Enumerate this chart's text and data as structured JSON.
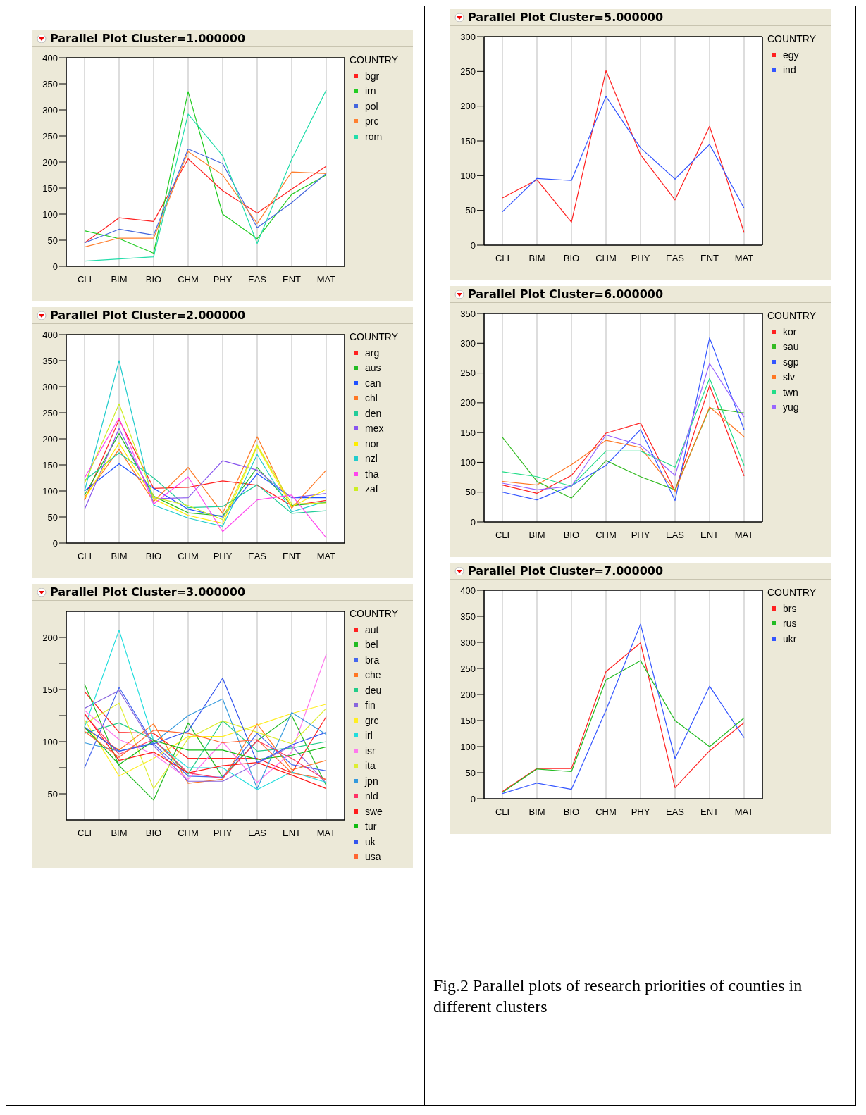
{
  "chart_data": [
    {
      "type": "line",
      "title": "Parallel Plot Cluster=1.000000",
      "legend_title": "COUNTRY",
      "legend": "right",
      "grid": "x",
      "marker": "none",
      "line_style": "solid",
      "categories": [
        "CLI",
        "BIM",
        "BIO",
        "CHM",
        "PHY",
        "EAS",
        "ENT",
        "MAT"
      ],
      "ylim": [
        0,
        400
      ],
      "yticks": [
        0,
        50,
        100,
        150,
        200,
        250,
        300,
        350,
        400
      ],
      "series": [
        {
          "name": "bgr",
          "color": "#ff2020",
          "values": [
            45,
            93,
            86,
            206,
            145,
            102,
            148,
            192
          ]
        },
        {
          "name": "irn",
          "color": "#22cc22",
          "values": [
            68,
            53,
            25,
            335,
            100,
            53,
            138,
            175
          ]
        },
        {
          "name": "pol",
          "color": "#4466dd",
          "values": [
            45,
            71,
            60,
            225,
            197,
            74,
            122,
            178
          ]
        },
        {
          "name": "prc",
          "color": "#ff8030",
          "values": [
            37,
            54,
            54,
            220,
            175,
            82,
            181,
            178
          ]
        },
        {
          "name": "rom",
          "color": "#22ddaa",
          "values": [
            10,
            14,
            18,
            292,
            212,
            44,
            205,
            338
          ]
        }
      ]
    },
    {
      "type": "line",
      "title": "Parallel Plot Cluster=2.000000",
      "legend_title": "COUNTRY",
      "legend": "right",
      "grid": "x",
      "marker": "none",
      "line_style": "solid",
      "categories": [
        "CLI",
        "BIM",
        "BIO",
        "CHM",
        "PHY",
        "EAS",
        "ENT",
        "MAT"
      ],
      "ylim": [
        0,
        400
      ],
      "yticks": [
        0,
        50,
        100,
        150,
        200,
        250,
        300,
        350,
        400
      ],
      "series": [
        {
          "name": "arg",
          "color": "#ff2020",
          "values": [
            82,
            237,
            105,
            107,
            119,
            111,
            72,
            82
          ]
        },
        {
          "name": "aus",
          "color": "#22bb22",
          "values": [
            92,
            210,
            90,
            58,
            52,
            145,
            72,
            78
          ]
        },
        {
          "name": "can",
          "color": "#2050ff",
          "values": [
            100,
            152,
            105,
            65,
            50,
            133,
            87,
            87
          ]
        },
        {
          "name": "chl",
          "color": "#ff7722",
          "values": [
            88,
            180,
            80,
            145,
            57,
            204,
            67,
            140
          ]
        },
        {
          "name": "den",
          "color": "#22cc99",
          "values": [
            120,
            173,
            125,
            68,
            70,
            112,
            57,
            62
          ]
        },
        {
          "name": "mex",
          "color": "#8855ee",
          "values": [
            65,
            220,
            85,
            87,
            158,
            140,
            87,
            95
          ]
        },
        {
          "name": "nor",
          "color": "#ffee00",
          "values": [
            85,
            192,
            85,
            53,
            38,
            185,
            70,
            103
          ]
        },
        {
          "name": "nzl",
          "color": "#22cccc",
          "values": [
            100,
            350,
            73,
            48,
            32,
            170,
            60,
            80
          ]
        },
        {
          "name": "tha",
          "color": "#ff44ee",
          "values": [
            125,
            240,
            75,
            127,
            22,
            83,
            92,
            10
          ]
        },
        {
          "name": "zaf",
          "color": "#ccee22",
          "values": [
            115,
            267,
            88,
            72,
            45,
            188,
            75,
            77
          ]
        }
      ]
    },
    {
      "type": "line",
      "title": "Parallel Plot Cluster=3.000000",
      "legend_title": "COUNTRY",
      "legend": "right",
      "grid": "x",
      "marker": "none",
      "line_style": "solid",
      "categories": [
        "CLI",
        "BIM",
        "BIO",
        "CHM",
        "PHY",
        "EAS",
        "ENT",
        "MAT"
      ],
      "ylim": [
        25,
        225
      ],
      "yticks": [
        50,
        {
          "value": 75,
          "label": null
        },
        100,
        {
          "value": 125,
          "label": null
        },
        150,
        {
          "value": 175,
          "label": null
        },
        200
      ],
      "series": [
        {
          "name": "aut",
          "color": "#ff2020",
          "values": [
            148,
            109,
            108,
            84,
            84,
            84,
            70,
            124
          ]
        },
        {
          "name": "bel",
          "color": "#22bb22",
          "values": [
            155,
            77,
            44,
            118,
            66,
            101,
            125,
            58
          ]
        },
        {
          "name": "bra",
          "color": "#4466ee",
          "values": [
            75,
            152,
            98,
            67,
            66,
            108,
            78,
            72
          ]
        },
        {
          "name": "che",
          "color": "#ff7722",
          "values": [
            113,
            92,
            117,
            60,
            64,
            117,
            73,
            82
          ]
        },
        {
          "name": "deu",
          "color": "#22cc88",
          "values": [
            108,
            118,
            102,
            69,
            120,
            91,
            94,
            100
          ]
        },
        {
          "name": "fin",
          "color": "#8866dd",
          "values": [
            132,
            149,
            96,
            62,
            62,
            79,
            96,
            60
          ]
        },
        {
          "name": "grc",
          "color": "#ffee22",
          "values": [
            121,
            67,
            84,
            105,
            105,
            116,
            127,
            136
          ]
        },
        {
          "name": "irl",
          "color": "#22dddd",
          "values": [
            114,
            207,
            101,
            75,
            75,
            54,
            71,
            61
          ]
        },
        {
          "name": "isr",
          "color": "#ff77ee",
          "values": [
            130,
            102,
            88,
            64,
            100,
            61,
            90,
            184
          ]
        },
        {
          "name": "ita",
          "color": "#ddee33",
          "values": [
            117,
            137,
            55,
            103,
            120,
            109,
            98,
            132
          ]
        },
        {
          "name": "jpn",
          "color": "#3399dd",
          "values": [
            99,
            91,
            99,
            125,
            141,
            55,
            128,
            107
          ]
        },
        {
          "name": "nld",
          "color": "#ff3366",
          "values": [
            126,
            88,
            102,
            70,
            65,
            101,
            84,
            63
          ]
        },
        {
          "name": "swe",
          "color": "#ff1a1a",
          "values": [
            127,
            82,
            90,
            70,
            77,
            80,
            68,
            55
          ]
        },
        {
          "name": "tur",
          "color": "#11bb11",
          "values": [
            114,
            78,
            101,
            92,
            92,
            83,
            87,
            95
          ]
        },
        {
          "name": "uk",
          "color": "#3355ee",
          "values": [
            114,
            91,
            98,
            110,
            161,
            80,
            97,
            109
          ]
        },
        {
          "name": "usa",
          "color": "#ff6633",
          "values": [
            110,
            85,
            111,
            108,
            99,
            102,
            70,
            64
          ]
        }
      ]
    },
    {
      "type": "line",
      "title": "Parallel Plot Cluster=5.000000",
      "legend_title": "COUNTRY",
      "legend": "right",
      "grid": "x",
      "marker": "none",
      "line_style": "solid",
      "categories": [
        "CLI",
        "BIM",
        "BIO",
        "CHM",
        "PHY",
        "EAS",
        "ENT",
        "MAT"
      ],
      "ylim": [
        0,
        300
      ],
      "yticks": [
        0,
        50,
        100,
        150,
        200,
        250,
        300
      ],
      "series": [
        {
          "name": "egy",
          "color": "#ff2020",
          "values": [
            68,
            94,
            33,
            251,
            130,
            65,
            171,
            18
          ]
        },
        {
          "name": "ind",
          "color": "#3355ff",
          "values": [
            48,
            96,
            93,
            214,
            140,
            95,
            145,
            53
          ]
        }
      ]
    },
    {
      "type": "line",
      "title": "Parallel Plot Cluster=6.000000",
      "legend_title": "COUNTRY",
      "legend": "right",
      "grid": "x",
      "marker": "none",
      "line_style": "solid",
      "categories": [
        "CLI",
        "BIM",
        "BIO",
        "CHM",
        "PHY",
        "EAS",
        "ENT",
        "MAT"
      ],
      "ylim": [
        0,
        350
      ],
      "yticks": [
        0,
        50,
        100,
        150,
        200,
        250,
        300,
        350
      ],
      "series": [
        {
          "name": "kor",
          "color": "#ff2020",
          "values": [
            62,
            48,
            78,
            149,
            166,
            52,
            229,
            77
          ]
        },
        {
          "name": "sau",
          "color": "#33bb22",
          "values": [
            142,
            68,
            40,
            103,
            76,
            54,
            191,
            183
          ]
        },
        {
          "name": "sgp",
          "color": "#3355ff",
          "values": [
            50,
            37,
            61,
            95,
            155,
            36,
            309,
            155
          ]
        },
        {
          "name": "slv",
          "color": "#ff7722",
          "values": [
            68,
            62,
            96,
            137,
            125,
            52,
            193,
            143
          ]
        },
        {
          "name": "twn",
          "color": "#22dd88",
          "values": [
            84,
            76,
            60,
            119,
            119,
            92,
            241,
            95
          ]
        },
        {
          "name": "yug",
          "color": "#9966ff",
          "values": [
            65,
            54,
            60,
            146,
            129,
            78,
            266,
            176
          ]
        }
      ]
    },
    {
      "type": "line",
      "title": "Parallel Plot Cluster=7.000000",
      "legend_title": "COUNTRY",
      "legend": "right",
      "grid": "x",
      "marker": "none",
      "line_style": "solid",
      "categories": [
        "CLI",
        "BIM",
        "BIO",
        "CHM",
        "PHY",
        "EAS",
        "ENT",
        "MAT"
      ],
      "ylim": [
        0,
        400
      ],
      "yticks": [
        0,
        50,
        100,
        150,
        200,
        250,
        300,
        350,
        400
      ],
      "annotations": [
        "Fig.2 Parallel plots of research priorities  of counties  in different clusters"
      ],
      "series": [
        {
          "name": "brs",
          "color": "#ff2020",
          "values": [
            14,
            58,
            58,
            244,
            299,
            21,
            92,
            146
          ]
        },
        {
          "name": "rus",
          "color": "#22bb22",
          "values": [
            12,
            57,
            52,
            228,
            265,
            150,
            100,
            155
          ]
        },
        {
          "name": "ukr",
          "color": "#3355ff",
          "values": [
            10,
            30,
            18,
            170,
            335,
            77,
            216,
            117
          ]
        }
      ]
    }
  ]
}
